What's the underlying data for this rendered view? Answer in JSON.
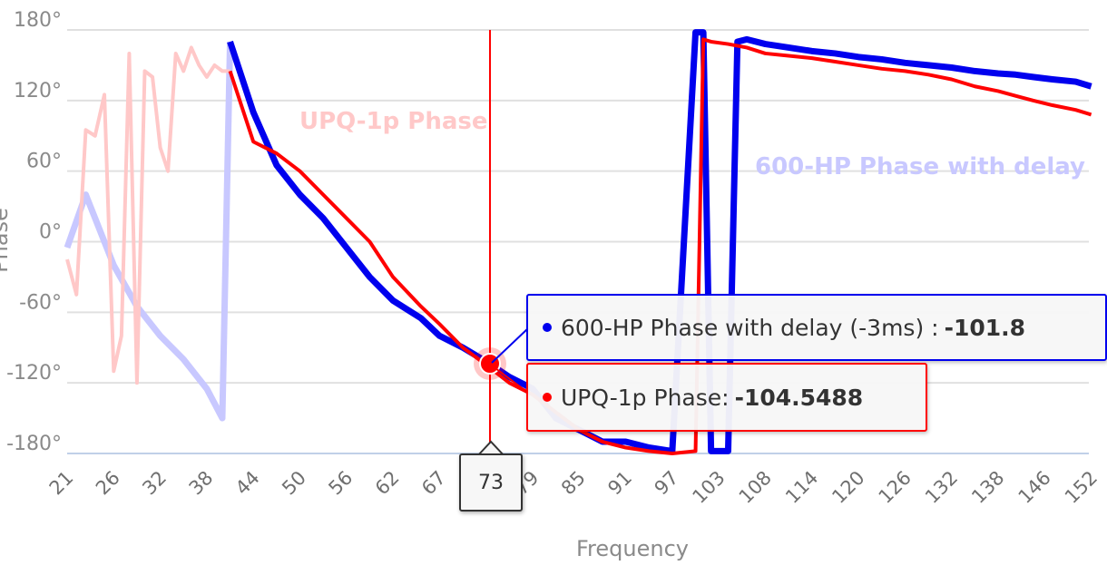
{
  "chart_data": {
    "type": "line",
    "title": "",
    "xlabel": "Frequency",
    "ylabel": "Phase",
    "ylim": [
      -180,
      180
    ],
    "y_ticks": [
      "180°",
      "120°",
      "60°",
      "0°",
      "-60°",
      "-120°",
      "-180°"
    ],
    "y_tick_values": [
      180,
      120,
      60,
      0,
      -60,
      -120,
      -180
    ],
    "x_ticks": [
      "21",
      "26",
      "32",
      "38",
      "44",
      "50",
      "56",
      "62",
      "67",
      "73",
      "79",
      "85",
      "91",
      "97",
      "103",
      "108",
      "114",
      "120",
      "126",
      "132",
      "138",
      "146",
      "152"
    ],
    "grid": true,
    "legend_position": "inline-labels",
    "series": [
      {
        "name": "600-HP Phase with delay (-3ms)",
        "short_label": "600-HP Phase with delay",
        "color": "#0000ee",
        "faded_color": "#c8c8ff",
        "x": [
          21,
          23,
          26,
          29,
          32,
          35,
          38,
          40,
          41,
          44,
          47,
          50,
          53,
          56,
          59,
          62,
          65,
          67,
          70,
          73,
          76,
          79,
          82,
          85,
          88,
          91,
          94,
          97,
          100,
          101,
          102,
          104,
          105,
          106,
          108,
          111,
          114,
          117,
          120,
          123,
          126,
          129,
          132,
          135,
          138,
          141,
          144,
          147,
          150,
          152
        ],
        "values": [
          -5,
          40,
          -20,
          -55,
          -80,
          -100,
          -125,
          -150,
          170,
          110,
          65,
          40,
          20,
          -5,
          -30,
          -50,
          -65,
          -80,
          -90,
          -101.8,
          -115,
          -125,
          -150,
          -160,
          -170,
          -170,
          -175,
          -178,
          178,
          178,
          -178,
          -178,
          170,
          172,
          168,
          165,
          162,
          160,
          157,
          155,
          152,
          150,
          148,
          145,
          143,
          142,
          140,
          138,
          136,
          132
        ]
      },
      {
        "name": "UPQ-1p Phase",
        "short_label": "UPQ-1p Phase",
        "color": "#ff0000",
        "faded_color": "#ffc8c8",
        "x": [
          21,
          22,
          23,
          24,
          25,
          26,
          27,
          28,
          29,
          30,
          31,
          32,
          33,
          34,
          35,
          36,
          37,
          38,
          39,
          40,
          41,
          44,
          47,
          50,
          53,
          56,
          59,
          62,
          65,
          67,
          70,
          73,
          76,
          79,
          82,
          85,
          88,
          91,
          94,
          97,
          100,
          101,
          102,
          104,
          106,
          108,
          111,
          114,
          117,
          120,
          123,
          126,
          129,
          132,
          135,
          138,
          141,
          144,
          147,
          150,
          152
        ],
        "values": [
          -15,
          -45,
          95,
          90,
          125,
          -110,
          -80,
          160,
          -120,
          145,
          140,
          80,
          60,
          160,
          145,
          165,
          150,
          140,
          150,
          145,
          145,
          85,
          75,
          60,
          40,
          20,
          0,
          -30,
          -55,
          -70,
          -90,
          -104.5488,
          -120,
          -130,
          -145,
          -160,
          -170,
          -175,
          -178,
          -180,
          -178,
          172,
          170,
          168,
          165,
          160,
          158,
          156,
          153,
          150,
          147,
          145,
          142,
          138,
          132,
          128,
          124,
          120,
          116,
          112,
          108
        ]
      }
    ],
    "crosshair_x": 73,
    "hover_points": [
      {
        "series": "600-HP Phase with delay (-3ms)",
        "x": 73,
        "y": -101.8
      },
      {
        "series": "UPQ-1p Phase",
        "x": 73,
        "y": -104.5488
      }
    ]
  },
  "axes": {
    "y_title": "Phase",
    "x_title": "Frequency"
  },
  "series_labels": {
    "upq": "UPQ-1p Phase",
    "hp600": "600-HP Phase with delay"
  },
  "tooltips": {
    "hp600": {
      "label": "600-HP Phase with delay (-3ms) :",
      "value": "-101.8",
      "color": "#0000ee"
    },
    "upq": {
      "label": "UPQ-1p Phase:",
      "value": "-104.5488",
      "color": "#ff0000"
    }
  },
  "crosshair_label": "73",
  "colors": {
    "grid": "#e0e0e0",
    "x_axis_line": "#c0d0e8",
    "crosshair": "#ff0000",
    "blue": "#0000ee",
    "red": "#ff0000",
    "blue_faded": "#c8c8ff",
    "red_faded": "#ffc8c8"
  }
}
